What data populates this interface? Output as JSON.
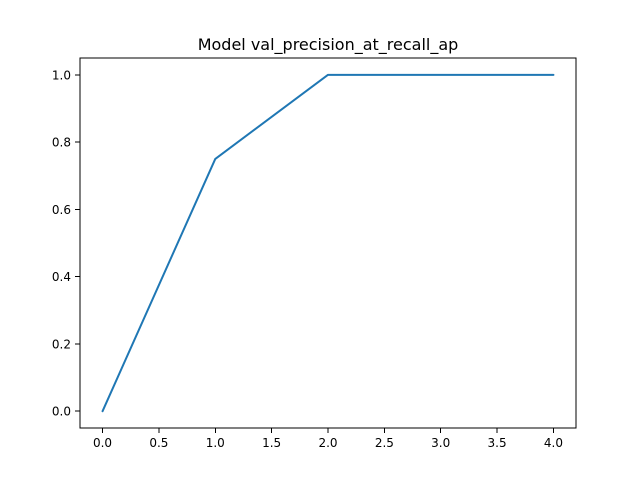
{
  "chart_data": {
    "type": "line",
    "title": "Model val_precision_at_recall_ap",
    "xlabel": "",
    "ylabel": "",
    "xlim": [
      -0.2,
      4.2
    ],
    "ylim": [
      -0.05,
      1.05
    ],
    "grid": false,
    "x_ticks": [
      0.0,
      0.5,
      1.0,
      1.5,
      2.0,
      2.5,
      3.0,
      3.5,
      4.0
    ],
    "x_tick_labels": [
      "0.0",
      "0.5",
      "1.0",
      "1.5",
      "2.0",
      "2.5",
      "3.0",
      "3.5",
      "4.0"
    ],
    "y_ticks": [
      0.0,
      0.2,
      0.4,
      0.6,
      0.8,
      1.0
    ],
    "y_tick_labels": [
      "0.0",
      "0.2",
      "0.4",
      "0.6",
      "0.8",
      "1.0"
    ],
    "series": [
      {
        "color": "#1f77b4",
        "x": [
          0,
          1,
          2,
          3,
          4
        ],
        "values": [
          0.0,
          0.75,
          1.0,
          1.0,
          1.0
        ]
      }
    ]
  }
}
